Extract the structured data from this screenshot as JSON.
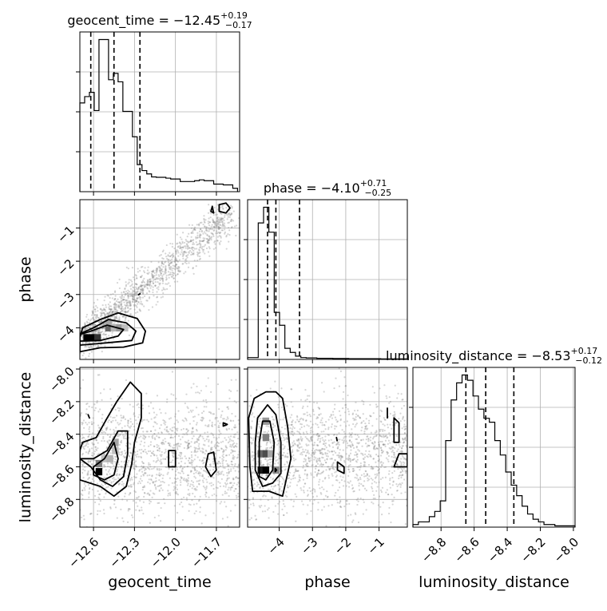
{
  "chart_data": {
    "type": "corner",
    "parameters": [
      "geocent_time",
      "phase",
      "luminosity_distance"
    ],
    "axis_labels": {
      "geocent_time": "geocent_time",
      "phase": "phase",
      "luminosity_distance": "luminosity_distance"
    },
    "ranges": {
      "geocent_time": [
        -12.7,
        -11.53
      ],
      "phase": [
        -4.95,
        -0.15
      ],
      "luminosity_distance": [
        -8.97,
        -7.99
      ]
    },
    "ticks": {
      "geocent_time": {
        "values": [
          -12.6,
          -12.3,
          -12.0,
          -11.7
        ],
        "labels": [
          "−12.6",
          "−12.3",
          "−12.0",
          "−11.7"
        ]
      },
      "phase": {
        "values": [
          -4,
          -3,
          -2,
          -1
        ],
        "labels": [
          "−4",
          "−3",
          "−2",
          "−1"
        ]
      },
      "luminosity_distance": {
        "values": [
          -8.8,
          -8.6,
          -8.4,
          -8.2,
          -8.0
        ],
        "labels": [
          "−8.8",
          "−8.6",
          "−8.4",
          "−8.2",
          "−8.0"
        ]
      }
    },
    "titles": {
      "geocent_time": {
        "text": "geocent_time = −12.45",
        "plus": "+0.19",
        "minus": "−0.17"
      },
      "phase": {
        "text": "phase = −4.10",
        "plus": "+0.71",
        "minus": "−0.25"
      },
      "luminosity_distance": {
        "text": "luminosity_distance = −8.53",
        "plus": "+0.17",
        "minus": "−0.12"
      }
    },
    "histograms": {
      "geocent_time": {
        "bins": [
          -12.7,
          -12.665,
          -12.63,
          -12.595,
          -12.56,
          -12.525,
          -12.49,
          -12.455,
          -12.42,
          -12.385,
          -12.35,
          -12.315,
          -12.28,
          -12.245,
          -12.21,
          -12.175,
          -12.14,
          -12.105,
          -12.07,
          -12.035,
          -12.0,
          -11.965,
          -11.93,
          -11.895,
          -11.86,
          -11.825,
          -11.79,
          -11.755,
          -11.72,
          -11.685,
          -11.65,
          -11.615,
          -11.58,
          -11.545
        ],
        "counts": [
          210,
          225,
          235,
          192,
          360,
          360,
          265,
          280,
          260,
          190,
          190,
          130,
          64,
          50,
          42,
          35,
          34,
          34,
          32,
          30,
          30,
          24,
          24,
          24,
          26,
          28,
          26,
          26,
          18,
          18,
          16,
          16,
          8
        ],
        "quantiles": [
          -12.62,
          -12.45,
          -12.26
        ]
      },
      "phase": {
        "bins": [
          -4.95,
          -4.79,
          -4.63,
          -4.47,
          -4.31,
          -4.15,
          -3.99,
          -3.83,
          -3.67,
          -3.51,
          -3.35,
          -3.19,
          -3.03,
          -2.87,
          -2.71,
          -2.55,
          -2.39,
          -2.23,
          -2.07,
          -1.91,
          -1.75,
          -1.59,
          -1.43,
          -1.27,
          -1.11,
          -0.95,
          -0.79,
          -0.63,
          -0.47,
          -0.31,
          -0.15
        ],
        "counts": [
          10,
          10,
          740,
          825,
          690,
          255,
          185,
          60,
          38,
          18,
          10,
          8,
          8,
          6,
          6,
          6,
          5,
          5,
          5,
          4,
          4,
          4,
          4,
          4,
          4,
          3,
          3,
          3,
          3,
          3
        ],
        "quantiles": [
          -4.35,
          -4.1,
          -3.39
        ]
      },
      "luminosity_distance": {
        "bins": [
          -8.97,
          -8.937,
          -8.904,
          -8.871,
          -8.838,
          -8.805,
          -8.772,
          -8.739,
          -8.706,
          -8.673,
          -8.64,
          -8.607,
          -8.574,
          -8.541,
          -8.508,
          -8.475,
          -8.442,
          -8.409,
          -8.376,
          -8.343,
          -8.31,
          -8.277,
          -8.244,
          -8.211,
          -8.178,
          -8.145,
          -8.112,
          -8.079,
          -8.046,
          -8.013,
          -7.99
        ],
        "counts": [
          2,
          4,
          4,
          8,
          12,
          20,
          66,
          97,
          110,
          116,
          112,
          100,
          90,
          83,
          80,
          66,
          55,
          42,
          32,
          24,
          16,
          10,
          6,
          4,
          2,
          2,
          1,
          1,
          1,
          1
        ],
        "quantiles": [
          -8.65,
          -8.53,
          -8.36
        ]
      }
    },
    "pairs": [
      {
        "x": "geocent_time",
        "y": "phase",
        "trend": {
          "x0": -12.65,
          "y0": -4.3,
          "x1": -11.6,
          "y1": -0.55
        },
        "density_cells": [
          {
            "x": -12.65,
            "y": -4.3,
            "weight": 1.0
          },
          {
            "x": -12.61,
            "y": -4.3,
            "weight": 1.0
          },
          {
            "x": -12.57,
            "y": -4.3,
            "weight": 0.8
          },
          {
            "x": -12.49,
            "y": -4.0,
            "weight": 0.6
          },
          {
            "x": -12.49,
            "y": -3.85,
            "weight": 0.35
          },
          {
            "x": -12.45,
            "y": -4.0,
            "weight": 0.3
          },
          {
            "x": -12.41,
            "y": -4.0,
            "weight": 0.4
          },
          {
            "x": -12.37,
            "y": -4.0,
            "weight": 0.25
          }
        ],
        "contours": [
          [
            [
              -12.7,
              -4.72
            ],
            [
              -12.55,
              -4.6
            ],
            [
              -12.38,
              -4.58
            ],
            [
              -12.24,
              -4.45
            ],
            [
              -12.22,
              -4.1
            ],
            [
              -12.28,
              -3.72
            ],
            [
              -12.42,
              -3.55
            ],
            [
              -12.55,
              -3.75
            ],
            [
              -12.68,
              -4.0
            ],
            [
              -12.7,
              -4.3
            ]
          ],
          [
            [
              -12.7,
              -4.52
            ],
            [
              -12.5,
              -4.45
            ],
            [
              -12.32,
              -4.38
            ],
            [
              -12.29,
              -4.1
            ],
            [
              -12.36,
              -3.85
            ],
            [
              -12.49,
              -3.75
            ],
            [
              -12.6,
              -4.0
            ],
            [
              -12.7,
              -4.18
            ]
          ],
          [
            [
              -12.7,
              -4.4
            ],
            [
              -12.55,
              -4.38
            ],
            [
              -12.42,
              -4.25
            ],
            [
              -12.38,
              -4.05
            ],
            [
              -12.5,
              -3.92
            ],
            [
              -12.62,
              -4.1
            ],
            [
              -12.7,
              -4.2
            ]
          ],
          [
            [
              -11.63,
              -0.25
            ],
            [
              -11.6,
              -0.4
            ],
            [
              -11.63,
              -0.55
            ],
            [
              -11.68,
              -0.5
            ],
            [
              -11.68,
              -0.3
            ]
          ],
          [
            [
              -11.73,
              -0.35
            ],
            [
              -11.72,
              -0.55
            ],
            [
              -11.74,
              -0.5
            ]
          ],
          [
            [
              -12.26,
              -2.98
            ],
            [
              -12.27,
              -3.0
            ]
          ]
        ]
      },
      {
        "x": "geocent_time",
        "y": "luminosity_distance",
        "density_cells": [
          {
            "x": -12.56,
            "y": -8.63,
            "weight": 1.0
          },
          {
            "x": -12.56,
            "y": -8.58,
            "weight": 0.5
          },
          {
            "x": -12.52,
            "y": -8.55,
            "weight": 0.25
          },
          {
            "x": -12.48,
            "y": -8.55,
            "weight": 0.3
          },
          {
            "x": -12.44,
            "y": -8.45,
            "weight": 0.35
          },
          {
            "x": -12.44,
            "y": -8.5,
            "weight": 0.25
          }
        ],
        "contours": [
          [
            [
              -12.7,
              -8.68
            ],
            [
              -12.55,
              -8.72
            ],
            [
              -12.45,
              -8.78
            ],
            [
              -12.36,
              -8.72
            ],
            [
              -12.32,
              -8.58
            ],
            [
              -12.3,
              -8.45
            ],
            [
              -12.25,
              -8.3
            ],
            [
              -12.25,
              -8.15
            ],
            [
              -12.33,
              -8.08
            ],
            [
              -12.43,
              -8.2
            ],
            [
              -12.5,
              -8.3
            ],
            [
              -12.58,
              -8.42
            ],
            [
              -12.68,
              -8.45
            ],
            [
              -12.7,
              -8.5
            ]
          ],
          [
            [
              -12.7,
              -8.55
            ],
            [
              -12.6,
              -8.55
            ],
            [
              -12.5,
              -8.5
            ],
            [
              -12.42,
              -8.38
            ],
            [
              -12.35,
              -8.38
            ],
            [
              -12.35,
              -8.52
            ],
            [
              -12.38,
              -8.66
            ],
            [
              -12.46,
              -8.72
            ],
            [
              -12.55,
              -8.68
            ],
            [
              -12.62,
              -8.6
            ]
          ],
          [
            [
              -12.6,
              -8.6
            ],
            [
              -12.52,
              -8.55
            ],
            [
              -12.45,
              -8.45
            ],
            [
              -12.42,
              -8.55
            ],
            [
              -12.45,
              -8.65
            ],
            [
              -12.52,
              -8.68
            ],
            [
              -12.6,
              -8.65
            ]
          ],
          [
            [
              -12.05,
              -8.6
            ],
            [
              -12.0,
              -8.6
            ],
            [
              -12.0,
              -8.5
            ],
            [
              -12.05,
              -8.5
            ]
          ],
          [
            [
              -11.72,
              -8.51
            ],
            [
              -11.7,
              -8.62
            ],
            [
              -11.74,
              -8.66
            ],
            [
              -11.78,
              -8.6
            ],
            [
              -11.76,
              -8.52
            ]
          ],
          [
            [
              -11.65,
              -8.33
            ],
            [
              -11.62,
              -8.34
            ],
            [
              -11.65,
              -8.35
            ]
          ],
          [
            [
              -12.64,
              -8.28
            ],
            [
              -12.63,
              -8.3
            ]
          ]
        ]
      },
      {
        "x": "phase",
        "y": "luminosity_distance",
        "density_cells": [
          {
            "x": -4.55,
            "y": -8.52,
            "weight": 0.6
          },
          {
            "x": -4.55,
            "y": -8.62,
            "weight": 0.9
          },
          {
            "x": -4.4,
            "y": -8.52,
            "weight": 0.7
          },
          {
            "x": -4.4,
            "y": -8.42,
            "weight": 0.5
          },
          {
            "x": -4.4,
            "y": -8.32,
            "weight": 0.4
          },
          {
            "x": -4.4,
            "y": -8.62,
            "weight": 1.0
          },
          {
            "x": -4.25,
            "y": -8.52,
            "weight": 0.35
          },
          {
            "x": -4.1,
            "y": -8.62,
            "weight": 0.45
          }
        ],
        "contours": [
          [
            [
              -4.8,
              -8.75
            ],
            [
              -4.6,
              -8.75
            ],
            [
              -4.3,
              -8.75
            ],
            [
              -3.9,
              -8.78
            ],
            [
              -3.65,
              -8.55
            ],
            [
              -3.75,
              -8.35
            ],
            [
              -3.9,
              -8.18
            ],
            [
              -4.1,
              -8.14
            ],
            [
              -4.4,
              -8.14
            ],
            [
              -4.75,
              -8.18
            ],
            [
              -4.92,
              -8.3
            ],
            [
              -4.88,
              -8.6
            ]
          ],
          [
            [
              -4.72,
              -8.62
            ],
            [
              -4.5,
              -8.72
            ],
            [
              -4.2,
              -8.7
            ],
            [
              -3.95,
              -8.64
            ],
            [
              -3.95,
              -8.45
            ],
            [
              -4.1,
              -8.28
            ],
            [
              -4.35,
              -8.22
            ],
            [
              -4.65,
              -8.3
            ],
            [
              -4.72,
              -8.45
            ]
          ],
          [
            [
              -4.6,
              -8.66
            ],
            [
              -4.4,
              -8.68
            ],
            [
              -4.2,
              -8.62
            ],
            [
              -4.15,
              -8.45
            ],
            [
              -4.28,
              -8.32
            ],
            [
              -4.5,
              -8.32
            ],
            [
              -4.6,
              -8.45
            ]
          ],
          [
            [
              -4.12,
              -8.61
            ],
            [
              -4.08,
              -8.62
            ],
            [
              -4.12,
              -8.63
            ]
          ],
          [
            [
              -2.25,
              -8.57
            ],
            [
              -2.05,
              -8.6
            ],
            [
              -2.05,
              -8.64
            ],
            [
              -2.25,
              -8.62
            ]
          ],
          [
            [
              -2.28,
              -8.42
            ],
            [
              -2.26,
              -8.44
            ]
          ],
          [
            [
              -0.55,
              -8.3
            ],
            [
              -0.4,
              -8.33
            ],
            [
              -0.4,
              -8.45
            ],
            [
              -0.55,
              -8.45
            ]
          ],
          [
            [
              -0.75,
              -8.24
            ],
            [
              -0.75,
              -8.3
            ]
          ],
          [
            [
              -0.15,
              -8.52
            ],
            [
              -0.4,
              -8.52
            ],
            [
              -0.55,
              -8.6
            ],
            [
              -0.15,
              -8.6
            ]
          ]
        ]
      }
    ]
  }
}
